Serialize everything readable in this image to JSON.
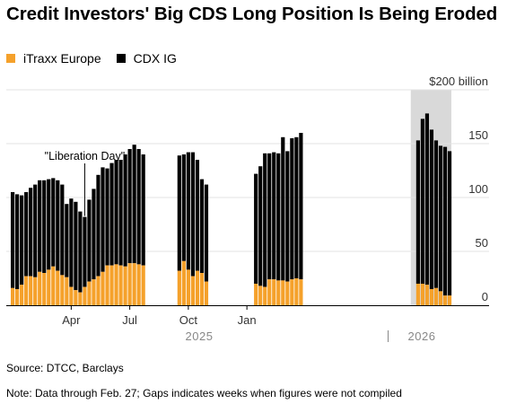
{
  "title": "Credit Investors' Big CDS Long Position Is Being Eroded",
  "colors": {
    "itraxx": "#f5a12b",
    "cdx": "#000000",
    "highlight": "#d9d9d9",
    "grid": "#e3e3e3",
    "axis_text": "#333333"
  },
  "chart_data": {
    "type": "bar",
    "stacked": true,
    "title": "Credit Investors' Big CDS Long Position Is Being Eroded",
    "ylim": [
      0,
      200
    ],
    "yticks": [
      {
        "value": 200,
        "label": "$200 billion"
      },
      {
        "value": 150,
        "label": "150"
      },
      {
        "value": 100,
        "label": "100"
      },
      {
        "value": 50,
        "label": "50"
      },
      {
        "value": 0,
        "label": "0"
      }
    ],
    "xticks": [
      "Apr",
      "Jul",
      "Oct",
      "Jan"
    ],
    "year_labels": [
      "2025",
      "2026"
    ],
    "legend": {
      "placement": "top-left",
      "entries": [
        "iTraxx Europe",
        "CDX IG"
      ]
    },
    "grid": true,
    "highlight_period": "2026 Jan–Feb",
    "annotations": [
      {
        "text": "\"Liberation Day\"",
        "week": 16
      }
    ],
    "weeks": [
      0,
      1,
      2,
      3,
      4,
      5,
      6,
      7,
      8,
      9,
      10,
      11,
      12,
      13,
      14,
      15,
      16,
      17,
      18,
      19,
      20,
      21,
      22,
      23,
      24,
      25,
      26,
      27,
      28,
      29,
      30,
      31,
      32,
      33,
      34,
      35,
      36,
      37,
      38,
      39,
      40,
      41,
      42,
      43,
      44,
      45,
      46,
      47,
      48,
      49,
      50,
      51,
      52,
      53,
      54,
      55,
      56,
      57,
      58,
      59,
      60,
      61,
      62,
      63,
      64,
      65,
      66,
      67,
      68,
      69,
      70,
      71,
      72,
      73,
      74,
      75,
      76,
      77,
      78,
      79,
      80,
      81,
      82,
      83,
      84,
      85,
      86,
      87,
      88,
      89,
      90,
      91,
      92,
      93,
      94,
      95,
      96,
      97
    ],
    "series": [
      {
        "name": "iTraxx Europe",
        "values": [
          16,
          15,
          19,
          27,
          27,
          26,
          31,
          30,
          33,
          36,
          32,
          28,
          26,
          17,
          14,
          12,
          17,
          22,
          24,
          27,
          31,
          37,
          37,
          38,
          37,
          36,
          39,
          39,
          38,
          37,
          null,
          null,
          null,
          null,
          null,
          null,
          null,
          32,
          41,
          33,
          27,
          32,
          30,
          22,
          null,
          null,
          null,
          null,
          null,
          null,
          null,
          null,
          null,
          null,
          20,
          18,
          17,
          24,
          24,
          23,
          23,
          22,
          24,
          25,
          24,
          null,
          null,
          null,
          null,
          null,
          null,
          null,
          null,
          null,
          null,
          null,
          null,
          null,
          null,
          null,
          null,
          null,
          null,
          null,
          null,
          null,
          null,
          null,
          null,
          null,
          20,
          20,
          19,
          15,
          16,
          13,
          9,
          9
        ]
      },
      {
        "name": "CDX IG",
        "values": [
          89,
          88,
          83,
          78,
          82,
          86,
          85,
          86,
          84,
          82,
          84,
          84,
          68,
          82,
          82,
          75,
          65,
          76,
          84,
          94,
          97,
          90,
          95,
          97,
          98,
          104,
          106,
          110,
          107,
          103,
          null,
          null,
          null,
          null,
          null,
          null,
          null,
          107,
          99,
          109,
          115,
          103,
          87,
          90,
          null,
          null,
          null,
          null,
          null,
          null,
          null,
          null,
          null,
          null,
          102,
          111,
          124,
          117,
          118,
          118,
          133,
          121,
          131,
          131,
          136,
          null,
          null,
          null,
          null,
          null,
          null,
          null,
          null,
          null,
          null,
          null,
          null,
          null,
          null,
          null,
          null,
          null,
          null,
          null,
          null,
          null,
          null,
          null,
          null,
          null,
          133,
          153,
          159,
          148,
          137,
          135,
          138,
          134
        ]
      }
    ]
  },
  "footer": {
    "source": "Source: DTCC, Barclays",
    "note": "Note: Data through Feb. 27; Gaps indicates weeks when figures were not compiled"
  }
}
